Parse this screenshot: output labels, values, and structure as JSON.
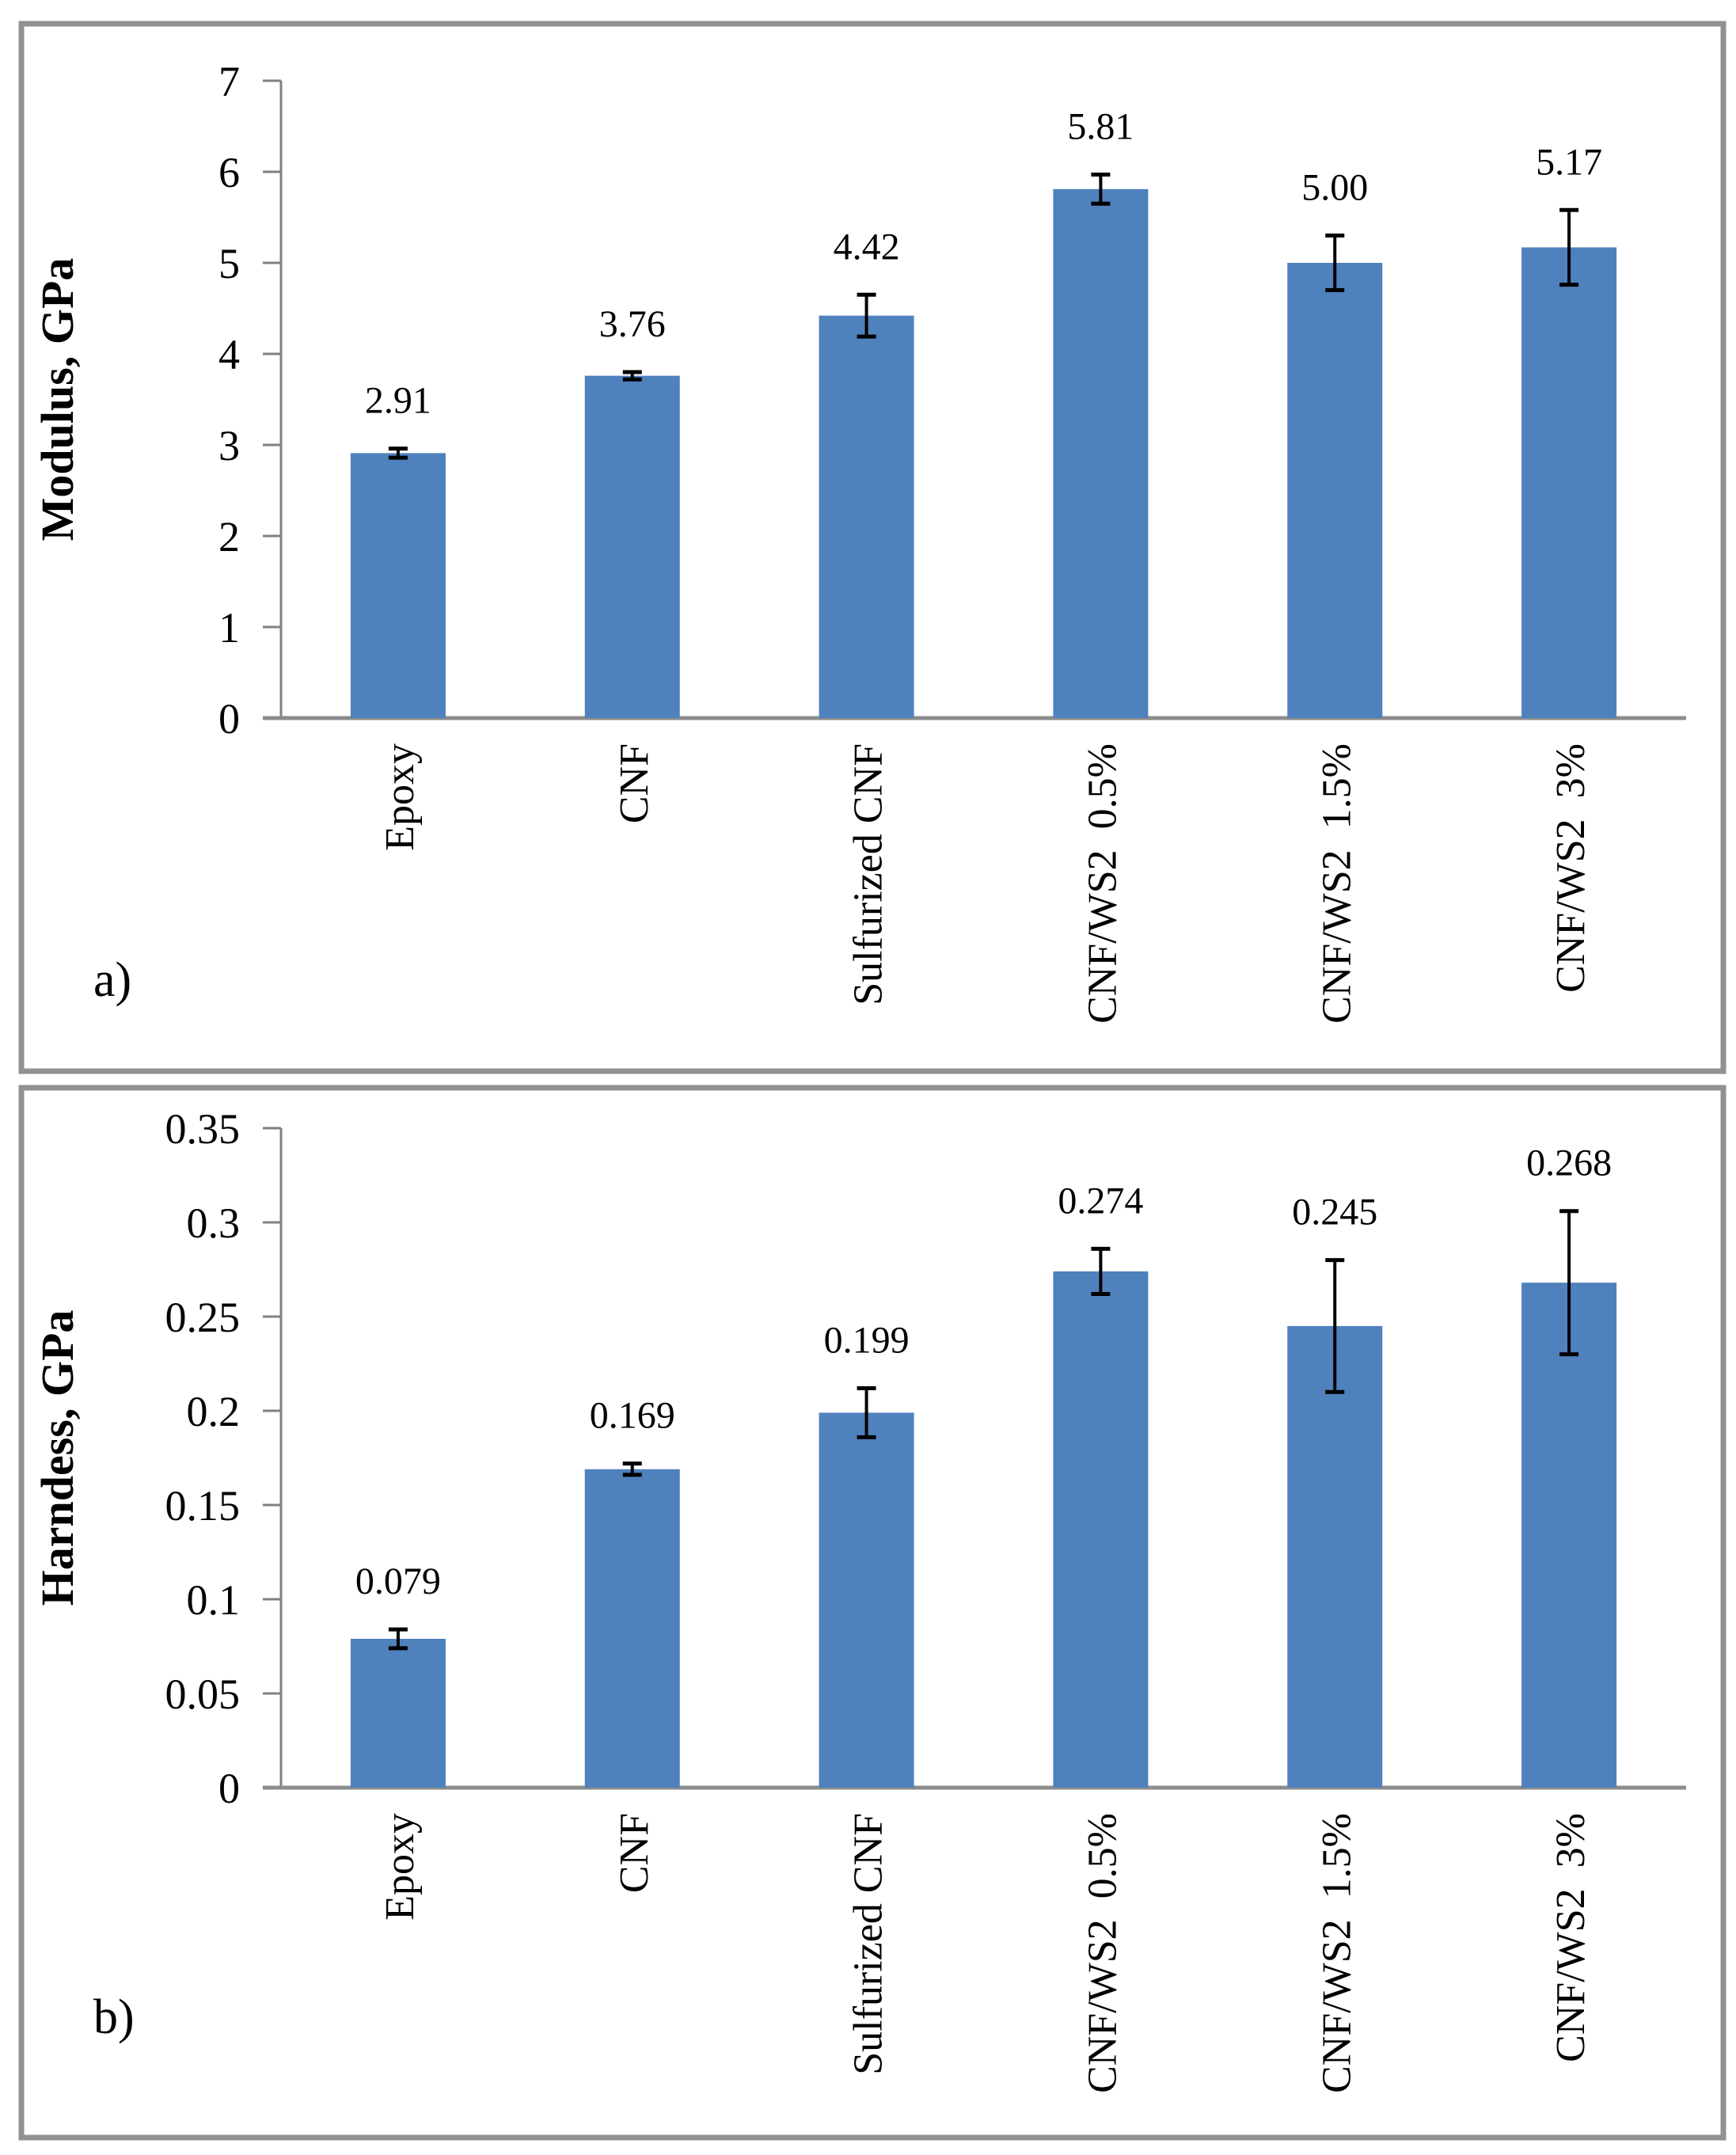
{
  "figure": {
    "description": "Two stacked bar charts comparing nanoindentation results of epoxy composites",
    "panels": [
      "a)",
      "b)"
    ]
  },
  "colors": {
    "bar_fill": "#4F81BD",
    "axis": "#808080",
    "baseline": "#8C8C8C",
    "panel_border": "#919191",
    "error_bar": "#000000",
    "text": "#000000",
    "background": "#FFFFFF"
  },
  "chart_data": [
    {
      "type": "bar",
      "panel_label": "a)",
      "title": "",
      "xlabel": "",
      "ylabel": "Modulus, GPa",
      "categories": [
        "Epoxy",
        "CNF",
        "Sulfurized CNF",
        "CNF/WS2  0.5%",
        "CNF/WS2  1.5%",
        "CNF/WS2  3%"
      ],
      "values": [
        2.91,
        3.76,
        4.42,
        5.81,
        5.0,
        5.17
      ],
      "value_labels": [
        "2.91",
        "3.76",
        "4.42",
        "5.81",
        "5.00",
        "5.17"
      ],
      "errors": [
        0.05,
        0.04,
        0.23,
        0.16,
        0.3,
        0.41
      ],
      "ylim": [
        0,
        7
      ],
      "yticks": [
        0,
        1,
        2,
        3,
        4,
        5,
        6,
        7
      ],
      "ytick_labels": [
        "0",
        "1",
        "2",
        "3",
        "4",
        "5",
        "6",
        "7"
      ],
      "grid": false,
      "legend": null,
      "bar_color": "#4F81BD",
      "error_bars": true,
      "category_label_rotation": 90
    },
    {
      "type": "bar",
      "panel_label": "b)",
      "title": "",
      "xlabel": "",
      "ylabel": "Harndess, GPa",
      "categories": [
        "Epoxy",
        "CNF",
        "Sulfurized CNF",
        "CNF/WS2  0.5%",
        "CNF/WS2  1.5%",
        "CNF/WS2  3%"
      ],
      "values": [
        0.079,
        0.169,
        0.199,
        0.274,
        0.245,
        0.268
      ],
      "value_labels": [
        "0.079",
        "0.169",
        "0.199",
        "0.274",
        "0.245",
        "0.268"
      ],
      "errors": [
        0.005,
        0.003,
        0.013,
        0.012,
        0.035,
        0.038
      ],
      "ylim": [
        0,
        0.35
      ],
      "yticks": [
        0,
        0.05,
        0.1,
        0.15,
        0.2,
        0.25,
        0.3,
        0.35
      ],
      "ytick_labels": [
        "0",
        "0.05",
        "0.1",
        "0.15",
        "0.2",
        "0.25",
        "0.3",
        "0.35"
      ],
      "grid": false,
      "legend": null,
      "bar_color": "#4F81BD",
      "error_bars": true,
      "category_label_rotation": 90
    }
  ]
}
